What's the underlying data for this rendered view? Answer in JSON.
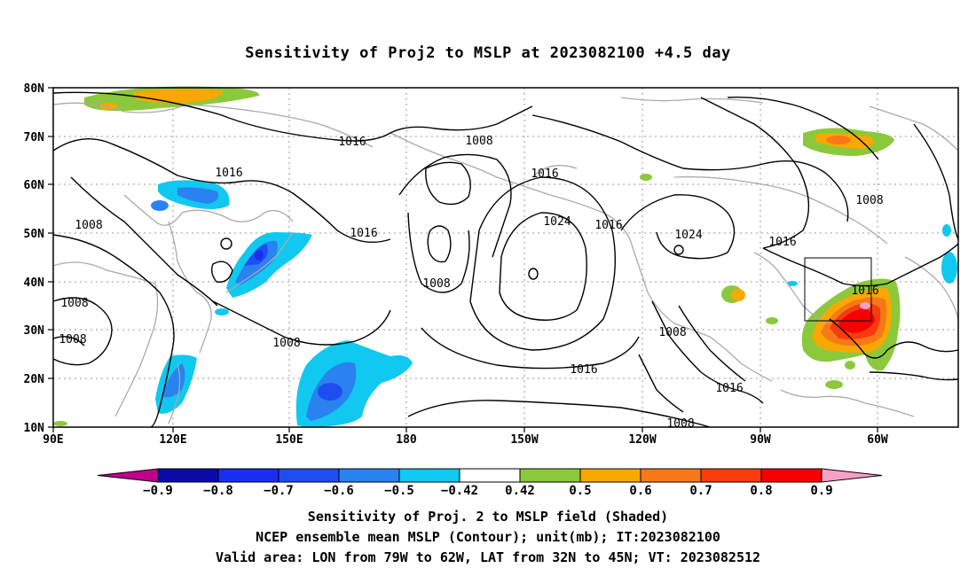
{
  "title": "Sensitivity of Proj2 to MSLP at 2023082100 +4.5 day",
  "lat_labels": [
    "80N",
    "70N",
    "60N",
    "50N",
    "40N",
    "30N",
    "20N",
    "10N"
  ],
  "lon_labels": [
    "90E",
    "120E",
    "150E",
    "180",
    "150W",
    "120W",
    "90W",
    "60W"
  ],
  "contour_labels": [
    "1016",
    "1008",
    "1016",
    "1008",
    "1016",
    "1024",
    "1016",
    "1024",
    "1016",
    "1008",
    "1008",
    "1008",
    "1008",
    "1016",
    "1008",
    "1008",
    "1016",
    "1016",
    "1008",
    "1016"
  ],
  "colorbar": {
    "labels": [
      "-0.9",
      "-0.8",
      "-0.7",
      "-0.6",
      "-0.5",
      "-0.42",
      "0.42",
      "0.5",
      "0.6",
      "0.7",
      "0.8",
      "0.9"
    ],
    "colors": [
      "#c0008c",
      "#0a0aa6",
      "#1a2ef0",
      "#1f4ef0",
      "#2a82f0",
      "#10c8f0",
      "#ffffff",
      "#8cc83c",
      "#f8a800",
      "#f87818",
      "#f83c0c",
      "#f80000",
      "#f8a0c8"
    ]
  },
  "captions": [
    "Sensitivity of Proj. 2 to MSLP field (Shaded)",
    "NCEP ensemble mean MSLP (Contour); unit(mb); IT:2023082100",
    "Valid area: LON from 79W to 62W, LAT from 32N to 45N; VT: 2023082512"
  ]
}
